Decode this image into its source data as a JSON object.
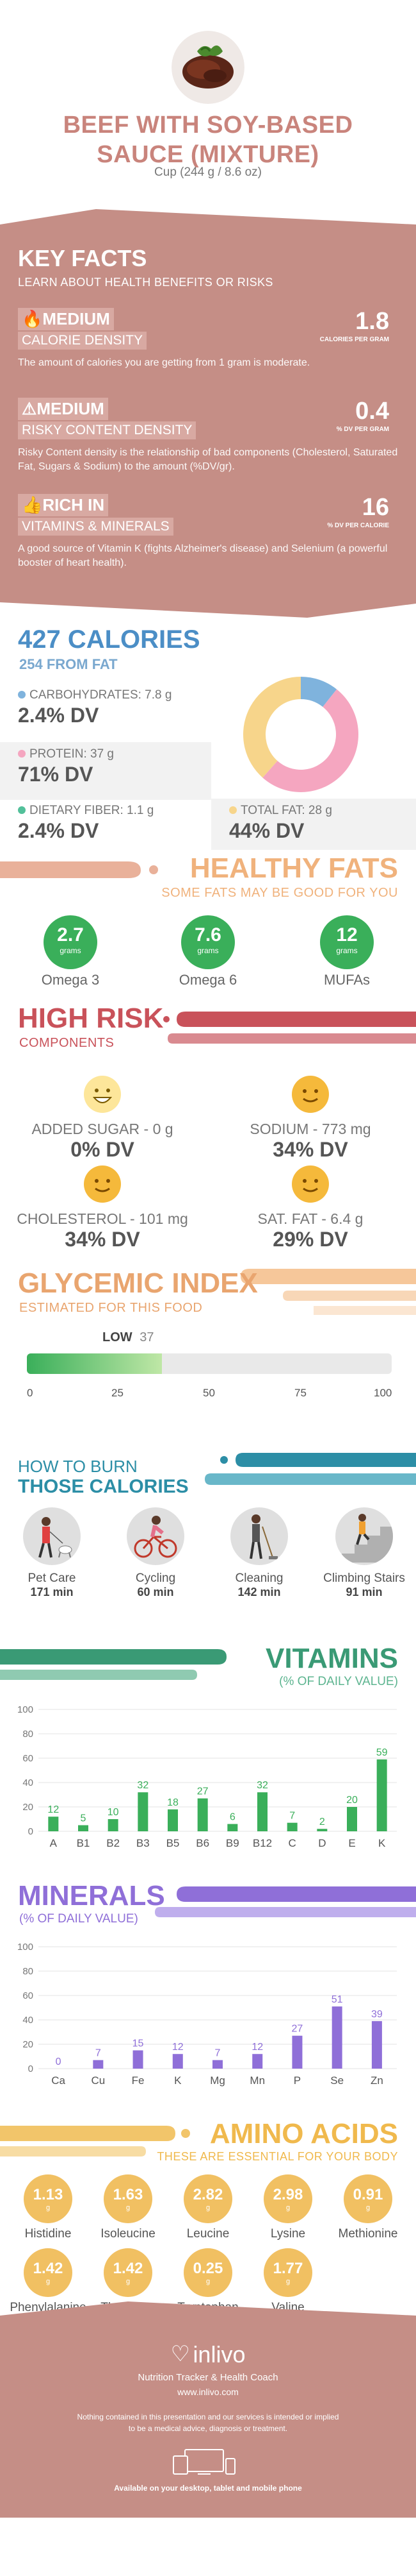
{
  "header": {
    "title_line1": "BEEF WITH SOY-BASED",
    "title_line2": "SAUCE (MIXTURE)",
    "serving": "Cup (244 g / 8.6 oz)"
  },
  "key_facts": {
    "title": "KEY FACTS",
    "subtitle": "LEARN ABOUT HEALTH BENEFITS OR RISKS",
    "facts": [
      {
        "level": "MEDIUM",
        "label": "CALORIE DENSITY",
        "value": "1.8",
        "unit": "CALORIES PER GRAM",
        "desc": "The amount of calories you are getting from 1 gram is moderate."
      },
      {
        "level": "MEDIUM",
        "label": "RISKY CONTENT DENSITY",
        "value": "0.4",
        "unit": "% DV PER GRAM",
        "desc": "Risky Content density is the relationship of bad components (Cholesterol, Saturated Fat, Sugars & Sodium) to the amount (%DV/gr)."
      },
      {
        "level": "RICH  IN",
        "label": "VITAMINS & MINERALS",
        "value": "16",
        "unit": "% DV PER CALORIE",
        "desc": "A good source of Vitamin K (fights Alzheimer's disease) and Selenium (a powerful booster of heart health)."
      }
    ]
  },
  "calories": {
    "title": "427 CALORIES",
    "subtitle": "254 FROM FAT",
    "carbs": {
      "label": "CARBOHYDRATES: 7.8 g",
      "dv": "2.4% DV"
    },
    "protein": {
      "label": "PROTEIN: 37 g",
      "dv": "71% DV"
    },
    "fiber": {
      "label": "DIETARY FIBER: 1.1 g",
      "dv": "2.4% DV"
    },
    "fat": {
      "label": "TOTAL FAT: 28 g",
      "dv": "44% DV"
    },
    "donut": [
      {
        "name": "carbs",
        "value": 7.8,
        "color": "#7fb3dd"
      },
      {
        "name": "protein",
        "value": 37,
        "color": "#f5a6c0"
      },
      {
        "name": "fat",
        "value": 28,
        "color": "#f7d58b"
      }
    ]
  },
  "healthy_fats": {
    "title": "HEALTHY FATS",
    "subtitle": "SOME FATS MAY BE GOOD FOR YOU",
    "items": [
      {
        "value": "2.7",
        "unit": "grams",
        "name": "Omega 3"
      },
      {
        "value": "7.6",
        "unit": "grams",
        "name": "Omega 6"
      },
      {
        "value": "12",
        "unit": "grams",
        "name": "MUFAs"
      }
    ]
  },
  "high_risk": {
    "title": "HIGH RISK",
    "subtitle": "COMPONENTS",
    "items": [
      {
        "label": "ADDED SUGAR - 0 g",
        "dv": "0% DV"
      },
      {
        "label": "SODIUM - 773 mg",
        "dv": "34% DV"
      },
      {
        "label": "CHOLESTEROL - 101 mg",
        "dv": "34% DV"
      },
      {
        "label": "SAT. FAT - 6.4 g",
        "dv": "29% DV"
      }
    ]
  },
  "glycemic": {
    "title": "GLYCEMIC INDEX",
    "subtitle": "ESTIMATED FOR THIS FOOD",
    "level": "LOW",
    "value": "37",
    "ticks": [
      "0",
      "25",
      "50",
      "75",
      "100"
    ],
    "fraction": 0.37
  },
  "burn": {
    "title1": "HOW TO BURN",
    "title2": "THOSE CALORIES",
    "items": [
      {
        "name": "Pet Care",
        "min": "171 min"
      },
      {
        "name": "Cycling",
        "min": "60 min"
      },
      {
        "name": "Cleaning",
        "min": "142 min"
      },
      {
        "name": "Climbing Stairs",
        "min": "91 min"
      }
    ]
  },
  "vitamins": {
    "title": "VITAMINS",
    "subtitle": "(% OF DAILY VALUE)"
  },
  "minerals": {
    "title": "MINERALS",
    "subtitle": "(% OF DAILY VALUE)"
  },
  "chart_data": [
    {
      "type": "bar",
      "title": "VITAMINS",
      "subtitle": "(% OF DAILY VALUE)",
      "categories": [
        "A",
        "B1",
        "B2",
        "B3",
        "B5",
        "B6",
        "B9",
        "B12",
        "C",
        "D",
        "E",
        "K"
      ],
      "values": [
        12,
        5,
        10,
        32,
        18,
        27,
        6,
        32,
        7,
        2,
        20,
        59
      ],
      "ylim": [
        0,
        100
      ],
      "yticks": [
        0,
        20,
        40,
        60,
        80,
        100
      ],
      "color": "#3aaf5a"
    },
    {
      "type": "bar",
      "title": "MINERALS",
      "subtitle": "(% OF DAILY VALUE)",
      "categories": [
        "Ca",
        "Cu",
        "Fe",
        "K",
        "Mg",
        "Mn",
        "P",
        "Se",
        "Zn"
      ],
      "values": [
        0,
        7,
        15,
        12,
        7,
        12,
        27,
        51,
        39
      ],
      "ylim": [
        0,
        100
      ],
      "yticks": [
        0,
        20,
        40,
        60,
        80,
        100
      ],
      "color": "#8f6fd8"
    }
  ],
  "amino": {
    "title": "AMINO ACIDS",
    "subtitle": "THESE ARE ESSENTIAL FOR YOUR BODY",
    "items": [
      {
        "value": "1.13",
        "unit": "g",
        "name": "Histidine"
      },
      {
        "value": "1.63",
        "unit": "g",
        "name": "Isoleucine"
      },
      {
        "value": "2.82",
        "unit": "g",
        "name": "Leucine"
      },
      {
        "value": "2.98",
        "unit": "g",
        "name": "Lysine"
      },
      {
        "value": "0.91",
        "unit": "g",
        "name": "Methionine"
      },
      {
        "value": "1.42",
        "unit": "g",
        "name": "Phenylalanine"
      },
      {
        "value": "1.42",
        "unit": "g",
        "name": "Threonine"
      },
      {
        "value": "0.25",
        "unit": "g",
        "name": "Tryptophan"
      },
      {
        "value": "1.77",
        "unit": "g",
        "name": "Valine"
      }
    ]
  },
  "footer": {
    "brand": "inlivo",
    "tagline": "Nutrition Tracker & Health Coach",
    "url": "www.inlivo.com",
    "disclaimer1": "Nothing contained in this presentation and our services is intended or implied",
    "disclaimer2": "to be a medical advice, diagnosis or treatment.",
    "available": "Available on your desktop, tablet and mobile phone"
  }
}
